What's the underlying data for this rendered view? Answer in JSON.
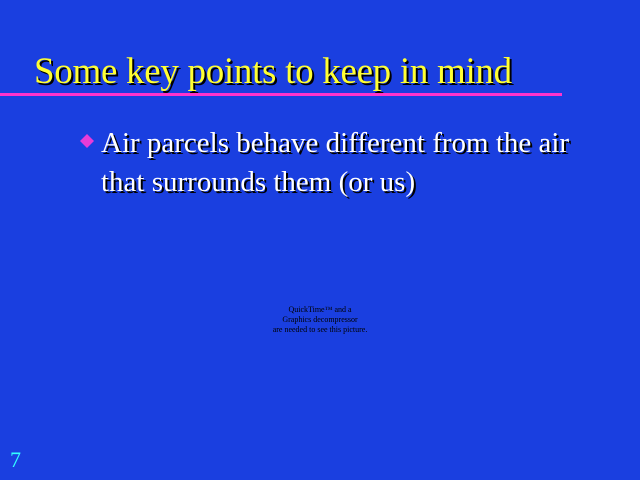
{
  "slide": {
    "title": "Some key points to keep in mind",
    "bullets": [
      {
        "marker_icon": "diamond-bullet-icon",
        "text": "Air parcels behave different from the air that surrounds them (or us)"
      }
    ],
    "image_placeholder": {
      "line1": "QuickTime™ and a",
      "line2": "Graphics decompressor",
      "line3": "are needed to see this picture."
    },
    "page_number": "7"
  },
  "colors": {
    "background": "#1a3fe0",
    "title": "#ffff33",
    "title_rule": "#ff33cc",
    "bullet_marker": "#e63cd8",
    "body_text": "#ffffff",
    "page_number": "#33ffff"
  }
}
